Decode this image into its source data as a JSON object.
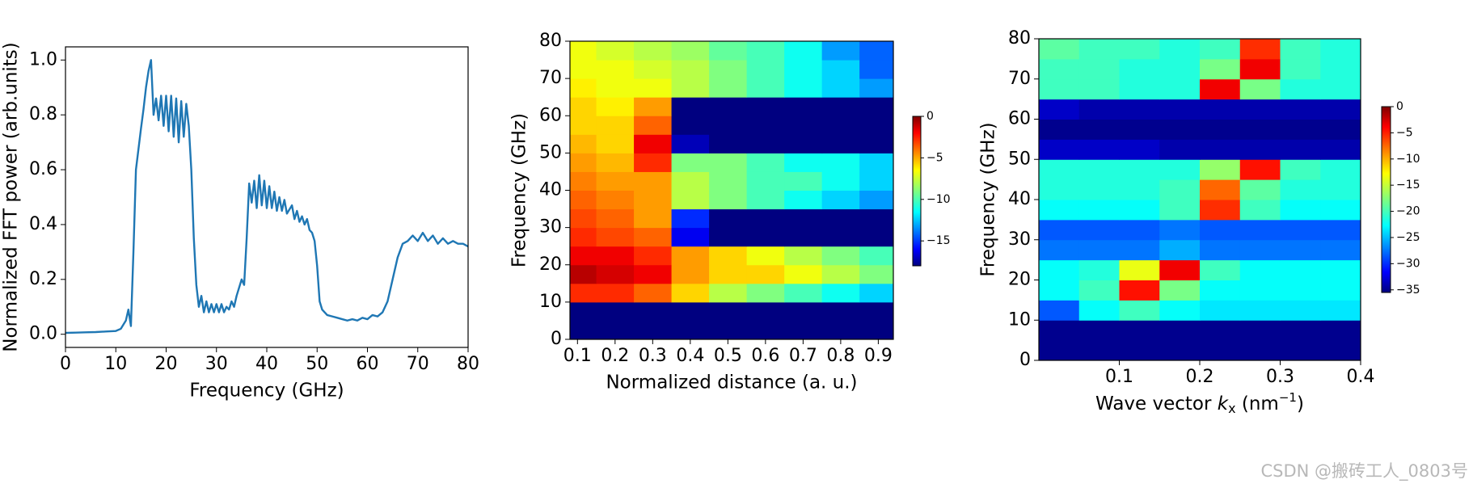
{
  "chart_data": [
    {
      "type": "line",
      "xlabel": "Frequency (GHz)",
      "ylabel": "Normalized FFT power (arb.units)",
      "xlim": [
        0,
        80
      ],
      "ylim": [
        -0.048,
        1.048
      ],
      "xticks": [
        0,
        10,
        20,
        30,
        40,
        50,
        60,
        70,
        80
      ],
      "yticks": [
        {
          "value": 0,
          "label": "0.0"
        },
        {
          "value": 0.2,
          "label": "0.2"
        },
        {
          "value": 0.4,
          "label": "0.4"
        },
        {
          "value": 0.6,
          "label": "0.6"
        },
        {
          "value": 0.8,
          "label": "0.8"
        },
        {
          "value": 1,
          "label": "1.0"
        }
      ],
      "series": [
        {
          "color": "#1f77b4",
          "x": [
            0,
            2,
            4,
            6,
            8,
            10,
            11,
            12,
            12.5,
            13,
            13.5,
            14,
            15,
            15.5,
            16,
            16.5,
            17,
            17.5,
            18,
            18.5,
            19,
            19.5,
            20,
            20.5,
            21,
            21.5,
            22,
            22.5,
            23,
            23.5,
            24,
            24.5,
            25,
            25.5,
            26,
            26.5,
            27,
            27.5,
            28,
            28.5,
            29,
            29.5,
            30,
            30.5,
            31,
            31.5,
            32,
            32.5,
            33,
            33.5,
            34,
            35,
            35.5,
            36,
            36.5,
            37,
            37.5,
            38,
            38.5,
            39,
            39.5,
            40,
            40.5,
            41,
            41.5,
            42,
            42.5,
            43,
            43.5,
            44,
            45,
            45.5,
            46,
            46.5,
            47,
            47.5,
            48,
            48.5,
            49,
            49.5,
            50,
            50.5,
            51,
            52,
            53,
            54,
            55,
            56,
            57,
            58,
            59,
            60,
            61,
            62,
            63,
            64,
            65,
            66,
            67,
            68,
            69,
            70,
            71,
            72,
            73,
            74,
            75,
            76,
            77,
            78,
            79,
            80
          ],
          "values": [
            0.005,
            0.006,
            0.007,
            0.008,
            0.01,
            0.012,
            0.02,
            0.05,
            0.09,
            0.03,
            0.3,
            0.6,
            0.75,
            0.82,
            0.9,
            0.96,
            1.0,
            0.8,
            0.86,
            0.78,
            0.87,
            0.76,
            0.87,
            0.74,
            0.87,
            0.72,
            0.86,
            0.7,
            0.85,
            0.72,
            0.84,
            0.76,
            0.6,
            0.35,
            0.18,
            0.1,
            0.14,
            0.08,
            0.12,
            0.08,
            0.11,
            0.08,
            0.11,
            0.08,
            0.11,
            0.08,
            0.1,
            0.09,
            0.12,
            0.1,
            0.14,
            0.2,
            0.18,
            0.35,
            0.55,
            0.48,
            0.56,
            0.46,
            0.58,
            0.47,
            0.56,
            0.46,
            0.54,
            0.46,
            0.52,
            0.45,
            0.5,
            0.45,
            0.49,
            0.44,
            0.47,
            0.42,
            0.45,
            0.41,
            0.43,
            0.4,
            0.42,
            0.38,
            0.37,
            0.34,
            0.25,
            0.12,
            0.09,
            0.07,
            0.065,
            0.06,
            0.055,
            0.05,
            0.055,
            0.05,
            0.06,
            0.055,
            0.07,
            0.065,
            0.08,
            0.12,
            0.2,
            0.28,
            0.33,
            0.34,
            0.36,
            0.34,
            0.37,
            0.34,
            0.36,
            0.33,
            0.35,
            0.33,
            0.34,
            0.33,
            0.33,
            0.32
          ]
        }
      ]
    },
    {
      "type": "heatmap",
      "xlabel": "Normalized distance (a. u.)",
      "ylabel": "Frequency (GHz)",
      "xlim": [
        0.08,
        0.94
      ],
      "ylim": [
        0,
        80
      ],
      "xticks": [
        0.1,
        0.2,
        0.3,
        0.4,
        0.5,
        0.6,
        0.7,
        0.8,
        0.9
      ],
      "yticks": [
        0,
        10,
        20,
        30,
        40,
        50,
        60,
        70,
        80
      ],
      "zlim": [
        -18,
        0
      ],
      "zticks": [
        {
          "value": 0,
          "label": "0"
        },
        {
          "value": -5,
          "label": "−5"
        },
        {
          "value": -10,
          "label": "−10"
        },
        {
          "value": -15,
          "label": "−15"
        }
      ],
      "x": [
        0.1,
        0.2,
        0.3,
        0.4,
        0.5,
        0.6,
        0.7,
        0.8,
        0.9
      ],
      "y": [
        2.5,
        7.5,
        12.5,
        17.5,
        22.5,
        27.5,
        32.5,
        37.5,
        42.5,
        47.5,
        52.5,
        57.5,
        62.5,
        67.5,
        72.5,
        77.5
      ],
      "z": [
        [
          -18,
          -18,
          -18,
          -18,
          -18,
          -18,
          -18,
          -18,
          -18
        ],
        [
          -18,
          -18,
          -18,
          -18,
          -18,
          -18,
          -18,
          -18,
          -18
        ],
        [
          -3,
          -3,
          -4,
          -6,
          -8,
          -9,
          -10,
          -11,
          -12
        ],
        [
          -1,
          -1.5,
          -2,
          -5,
          -6,
          -6,
          -7,
          -8,
          -9
        ],
        [
          -2,
          -2,
          -3,
          -5,
          -6,
          -7,
          -8,
          -9,
          -10
        ],
        [
          -3,
          -3.5,
          -4,
          -16,
          -18,
          -18,
          -18,
          -18,
          -18
        ],
        [
          -3.5,
          -4,
          -5,
          -15,
          -18,
          -18,
          -18,
          -18,
          -18
        ],
        [
          -4,
          -4.5,
          -5,
          -8,
          -9,
          -10,
          -11,
          -12,
          -13
        ],
        [
          -4.5,
          -5,
          -5,
          -8,
          -9,
          -10,
          -10,
          -11,
          -12
        ],
        [
          -5,
          -5.5,
          -3,
          -9,
          -9,
          -10,
          -11,
          -11,
          -12
        ],
        [
          -5.5,
          -6,
          -2,
          -17,
          -18,
          -18,
          -18,
          -18,
          -18
        ],
        [
          -6,
          -6,
          -4,
          -18,
          -18,
          -18,
          -18,
          -18,
          -18
        ],
        [
          -6,
          -6.5,
          -5,
          -18,
          -18,
          -18,
          -18,
          -18,
          -18
        ],
        [
          -6.5,
          -7,
          -7,
          -8,
          -9,
          -10,
          -11,
          -12,
          -13
        ],
        [
          -7,
          -7,
          -7.5,
          -8,
          -9,
          -10,
          -11,
          -12,
          -14
        ],
        [
          -7,
          -7.5,
          -8,
          -8.5,
          -9.5,
          -10,
          -11,
          -13,
          -14
        ]
      ]
    },
    {
      "type": "heatmap",
      "xlabel": [
        "Wave vector ",
        "k",
        "x",
        " (nm",
        "−1",
        ")"
      ],
      "ylabel": "Frequency (GHz)",
      "xlim": [
        0,
        0.4
      ],
      "ylim": [
        0,
        80
      ],
      "xticks": [
        0.1,
        0.2,
        0.3,
        0.4
      ],
      "yticks": [
        0,
        10,
        20,
        30,
        40,
        50,
        60,
        70,
        80
      ],
      "zlim": [
        -35.5,
        0
      ],
      "zticks": [
        {
          "value": 0,
          "label": "0"
        },
        {
          "value": -5,
          "label": "−5"
        },
        {
          "value": -10,
          "label": "−10"
        },
        {
          "value": -15,
          "label": "−15"
        },
        {
          "value": -20,
          "label": "−20"
        },
        {
          "value": -25,
          "label": "−25"
        },
        {
          "value": -30,
          "label": "−30"
        },
        {
          "value": -35,
          "label": "−35"
        }
      ],
      "x": [
        0.025,
        0.075,
        0.125,
        0.175,
        0.225,
        0.275,
        0.325,
        0.375
      ],
      "y": [
        2.5,
        7.5,
        12.5,
        17.5,
        22.5,
        27.5,
        32.5,
        37.5,
        42.5,
        47.5,
        52.5,
        57.5,
        62.5,
        67.5,
        72.5,
        77.5
      ],
      "z": [
        [
          -35,
          -35,
          -35,
          -35,
          -35,
          -35,
          -35,
          -35
        ],
        [
          -35,
          -35,
          -35,
          -35,
          -35,
          -35,
          -35,
          -35
        ],
        [
          -28,
          -22,
          -20,
          -22,
          -23,
          -23,
          -23,
          -23
        ],
        [
          -22,
          -20,
          -5,
          -18,
          -22,
          -22,
          -22,
          -22
        ],
        [
          -22,
          -21,
          -14,
          -4,
          -20,
          -22,
          -22,
          -22
        ],
        [
          -27,
          -27,
          -27,
          -25,
          -27,
          -27,
          -27,
          -27
        ],
        [
          -28,
          -28,
          -28,
          -27,
          -28,
          -28,
          -28,
          -28
        ],
        [
          -22,
          -22,
          -22,
          -20,
          -6,
          -20,
          -22,
          -22
        ],
        [
          -21,
          -21,
          -21,
          -20,
          -8,
          -19,
          -21,
          -21
        ],
        [
          -21,
          -21,
          -21,
          -21,
          -17,
          -5,
          -20,
          -21
        ],
        [
          -33,
          -33,
          -33,
          -34,
          -34,
          -34,
          -34,
          -34
        ],
        [
          -35,
          -35,
          -35,
          -35,
          -35,
          -35,
          -35,
          -35
        ],
        [
          -33,
          -34,
          -34,
          -34,
          -34,
          -34,
          -34,
          -34
        ],
        [
          -20,
          -20,
          -21,
          -21,
          -4,
          -18,
          -21,
          -21
        ],
        [
          -20,
          -20,
          -21,
          -21,
          -18,
          -4,
          -20,
          -21
        ],
        [
          -19,
          -20,
          -20,
          -21,
          -20,
          -6,
          -20,
          -21
        ]
      ]
    }
  ],
  "watermark": "CSDN @搬砖工人_0803号"
}
